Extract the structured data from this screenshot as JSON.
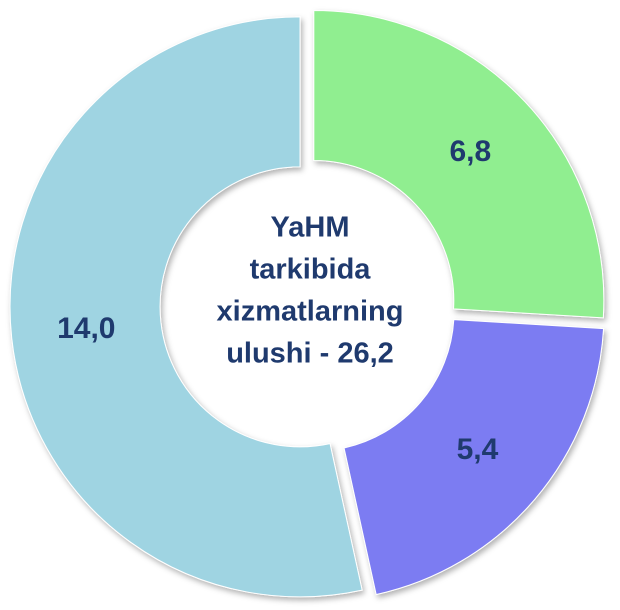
{
  "chart_data": {
    "type": "donut",
    "categories": [
      null,
      null,
      null
    ],
    "values": [
      6.8,
      5.4,
      14.0
    ],
    "value_labels": [
      "6,8",
      "5,4",
      "14,0"
    ],
    "colors": [
      "#90ee90",
      "#7b7bf2",
      "#9fd4e2"
    ],
    "center_label": [
      "YaHM",
      "tarkibida",
      "xizmatlarning",
      "ulushi - 26,2"
    ]
  }
}
